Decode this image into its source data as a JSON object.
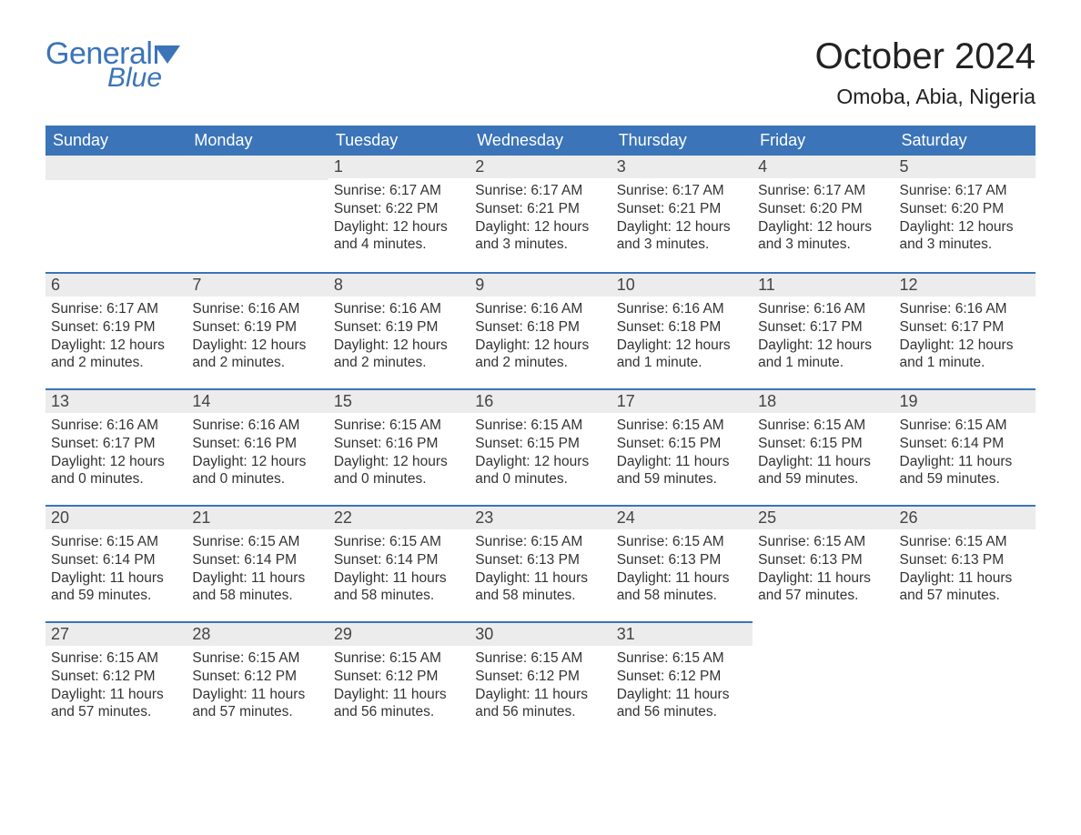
{
  "logo": {
    "text_general": "General",
    "text_blue": "Blue",
    "brand_color": "#3b74b8"
  },
  "title": "October 2024",
  "location": "Omoba, Abia, Nigeria",
  "colors": {
    "header_bg": "#3b74b8",
    "header_text": "#ffffff",
    "daynum_bg": "#ececec",
    "daynum_border": "#3b74b8",
    "body_bg": "#ffffff",
    "text": "#333333"
  },
  "typography": {
    "title_fontsize": 40,
    "location_fontsize": 23,
    "header_fontsize": 18,
    "daynum_fontsize": 18,
    "body_fontsize": 15.5
  },
  "weekdays": [
    "Sunday",
    "Monday",
    "Tuesday",
    "Wednesday",
    "Thursday",
    "Friday",
    "Saturday"
  ],
  "weeks": [
    [
      null,
      null,
      {
        "d": "1",
        "sunrise": "Sunrise: 6:17 AM",
        "sunset": "Sunset: 6:22 PM",
        "daylight": "Daylight: 12 hours and 4 minutes."
      },
      {
        "d": "2",
        "sunrise": "Sunrise: 6:17 AM",
        "sunset": "Sunset: 6:21 PM",
        "daylight": "Daylight: 12 hours and 3 minutes."
      },
      {
        "d": "3",
        "sunrise": "Sunrise: 6:17 AM",
        "sunset": "Sunset: 6:21 PM",
        "daylight": "Daylight: 12 hours and 3 minutes."
      },
      {
        "d": "4",
        "sunrise": "Sunrise: 6:17 AM",
        "sunset": "Sunset: 6:20 PM",
        "daylight": "Daylight: 12 hours and 3 minutes."
      },
      {
        "d": "5",
        "sunrise": "Sunrise: 6:17 AM",
        "sunset": "Sunset: 6:20 PM",
        "daylight": "Daylight: 12 hours and 3 minutes."
      }
    ],
    [
      {
        "d": "6",
        "sunrise": "Sunrise: 6:17 AM",
        "sunset": "Sunset: 6:19 PM",
        "daylight": "Daylight: 12 hours and 2 minutes."
      },
      {
        "d": "7",
        "sunrise": "Sunrise: 6:16 AM",
        "sunset": "Sunset: 6:19 PM",
        "daylight": "Daylight: 12 hours and 2 minutes."
      },
      {
        "d": "8",
        "sunrise": "Sunrise: 6:16 AM",
        "sunset": "Sunset: 6:19 PM",
        "daylight": "Daylight: 12 hours and 2 minutes."
      },
      {
        "d": "9",
        "sunrise": "Sunrise: 6:16 AM",
        "sunset": "Sunset: 6:18 PM",
        "daylight": "Daylight: 12 hours and 2 minutes."
      },
      {
        "d": "10",
        "sunrise": "Sunrise: 6:16 AM",
        "sunset": "Sunset: 6:18 PM",
        "daylight": "Daylight: 12 hours and 1 minute."
      },
      {
        "d": "11",
        "sunrise": "Sunrise: 6:16 AM",
        "sunset": "Sunset: 6:17 PM",
        "daylight": "Daylight: 12 hours and 1 minute."
      },
      {
        "d": "12",
        "sunrise": "Sunrise: 6:16 AM",
        "sunset": "Sunset: 6:17 PM",
        "daylight": "Daylight: 12 hours and 1 minute."
      }
    ],
    [
      {
        "d": "13",
        "sunrise": "Sunrise: 6:16 AM",
        "sunset": "Sunset: 6:17 PM",
        "daylight": "Daylight: 12 hours and 0 minutes."
      },
      {
        "d": "14",
        "sunrise": "Sunrise: 6:16 AM",
        "sunset": "Sunset: 6:16 PM",
        "daylight": "Daylight: 12 hours and 0 minutes."
      },
      {
        "d": "15",
        "sunrise": "Sunrise: 6:15 AM",
        "sunset": "Sunset: 6:16 PM",
        "daylight": "Daylight: 12 hours and 0 minutes."
      },
      {
        "d": "16",
        "sunrise": "Sunrise: 6:15 AM",
        "sunset": "Sunset: 6:15 PM",
        "daylight": "Daylight: 12 hours and 0 minutes."
      },
      {
        "d": "17",
        "sunrise": "Sunrise: 6:15 AM",
        "sunset": "Sunset: 6:15 PM",
        "daylight": "Daylight: 11 hours and 59 minutes."
      },
      {
        "d": "18",
        "sunrise": "Sunrise: 6:15 AM",
        "sunset": "Sunset: 6:15 PM",
        "daylight": "Daylight: 11 hours and 59 minutes."
      },
      {
        "d": "19",
        "sunrise": "Sunrise: 6:15 AM",
        "sunset": "Sunset: 6:14 PM",
        "daylight": "Daylight: 11 hours and 59 minutes."
      }
    ],
    [
      {
        "d": "20",
        "sunrise": "Sunrise: 6:15 AM",
        "sunset": "Sunset: 6:14 PM",
        "daylight": "Daylight: 11 hours and 59 minutes."
      },
      {
        "d": "21",
        "sunrise": "Sunrise: 6:15 AM",
        "sunset": "Sunset: 6:14 PM",
        "daylight": "Daylight: 11 hours and 58 minutes."
      },
      {
        "d": "22",
        "sunrise": "Sunrise: 6:15 AM",
        "sunset": "Sunset: 6:14 PM",
        "daylight": "Daylight: 11 hours and 58 minutes."
      },
      {
        "d": "23",
        "sunrise": "Sunrise: 6:15 AM",
        "sunset": "Sunset: 6:13 PM",
        "daylight": "Daylight: 11 hours and 58 minutes."
      },
      {
        "d": "24",
        "sunrise": "Sunrise: 6:15 AM",
        "sunset": "Sunset: 6:13 PM",
        "daylight": "Daylight: 11 hours and 58 minutes."
      },
      {
        "d": "25",
        "sunrise": "Sunrise: 6:15 AM",
        "sunset": "Sunset: 6:13 PM",
        "daylight": "Daylight: 11 hours and 57 minutes."
      },
      {
        "d": "26",
        "sunrise": "Sunrise: 6:15 AM",
        "sunset": "Sunset: 6:13 PM",
        "daylight": "Daylight: 11 hours and 57 minutes."
      }
    ],
    [
      {
        "d": "27",
        "sunrise": "Sunrise: 6:15 AM",
        "sunset": "Sunset: 6:12 PM",
        "daylight": "Daylight: 11 hours and 57 minutes."
      },
      {
        "d": "28",
        "sunrise": "Sunrise: 6:15 AM",
        "sunset": "Sunset: 6:12 PM",
        "daylight": "Daylight: 11 hours and 57 minutes."
      },
      {
        "d": "29",
        "sunrise": "Sunrise: 6:15 AM",
        "sunset": "Sunset: 6:12 PM",
        "daylight": "Daylight: 11 hours and 56 minutes."
      },
      {
        "d": "30",
        "sunrise": "Sunrise: 6:15 AM",
        "sunset": "Sunset: 6:12 PM",
        "daylight": "Daylight: 11 hours and 56 minutes."
      },
      {
        "d": "31",
        "sunrise": "Sunrise: 6:15 AM",
        "sunset": "Sunset: 6:12 PM",
        "daylight": "Daylight: 11 hours and 56 minutes."
      },
      null,
      null
    ]
  ]
}
